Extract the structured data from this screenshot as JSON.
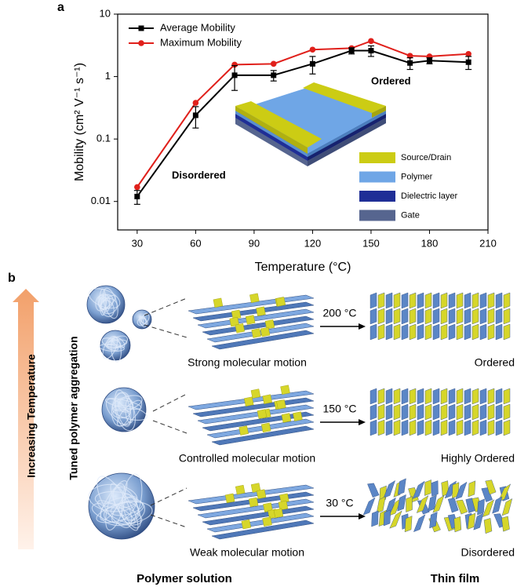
{
  "panel_a_label": "a",
  "chart_data": {
    "type": "line",
    "log_y": true,
    "x_label": "Temperature (°C)",
    "y_label": "Mobility (cm² V⁻¹ s⁻¹)",
    "x": [
      30,
      60,
      80,
      100,
      120,
      140,
      150,
      170,
      180,
      200
    ],
    "series": [
      {
        "name": "Average Mobility",
        "color": "#000000",
        "marker": "square",
        "values": [
          0.012,
          0.24,
          1.05,
          1.05,
          1.6,
          2.6,
          2.6,
          1.65,
          1.8,
          1.7
        ],
        "errors": [
          0.003,
          0.09,
          0.45,
          0.2,
          0.5,
          0.3,
          0.5,
          0.35,
          0.2,
          0.4
        ]
      },
      {
        "name": "Maximum Mobility",
        "color": "#e0201b",
        "marker": "circle",
        "values": [
          0.017,
          0.38,
          1.55,
          1.6,
          2.7,
          2.85,
          3.7,
          2.15,
          2.1,
          2.3
        ]
      }
    ],
    "xlim": [
      20,
      210
    ],
    "xticks": [
      30,
      60,
      90,
      120,
      150,
      180,
      210
    ],
    "ylim": [
      0.0035,
      10
    ],
    "yticks": [
      0.01,
      0.1,
      1,
      10
    ],
    "legend": "upper left",
    "annotations": [
      "Ordered",
      "Disordered"
    ],
    "inset_legend": [
      {
        "name": "Source/Drain",
        "color": "#cccc14"
      },
      {
        "name": "Polymer",
        "color": "#6fa6e6"
      },
      {
        "name": "Dielectric layer",
        "color": "#1f2e96"
      },
      {
        "name": "Gate",
        "color": "#56658f"
      }
    ]
  },
  "panel_b": {
    "label": "b",
    "arrow_label": "Increasing Temperature",
    "aggregation_label": "Tuned polymer aggregation",
    "rows": [
      {
        "motion": "Strong molecular motion",
        "temperature": "200 °C",
        "film_state": "Ordered"
      },
      {
        "motion": "Controlled molecular motion",
        "temperature": "150 °C",
        "film_state": "Highly Ordered"
      },
      {
        "motion": "Weak molecular motion",
        "temperature": "30 °C",
        "film_state": "Disordered"
      }
    ],
    "columns": [
      "Polymer solution",
      "Thin film"
    ]
  }
}
